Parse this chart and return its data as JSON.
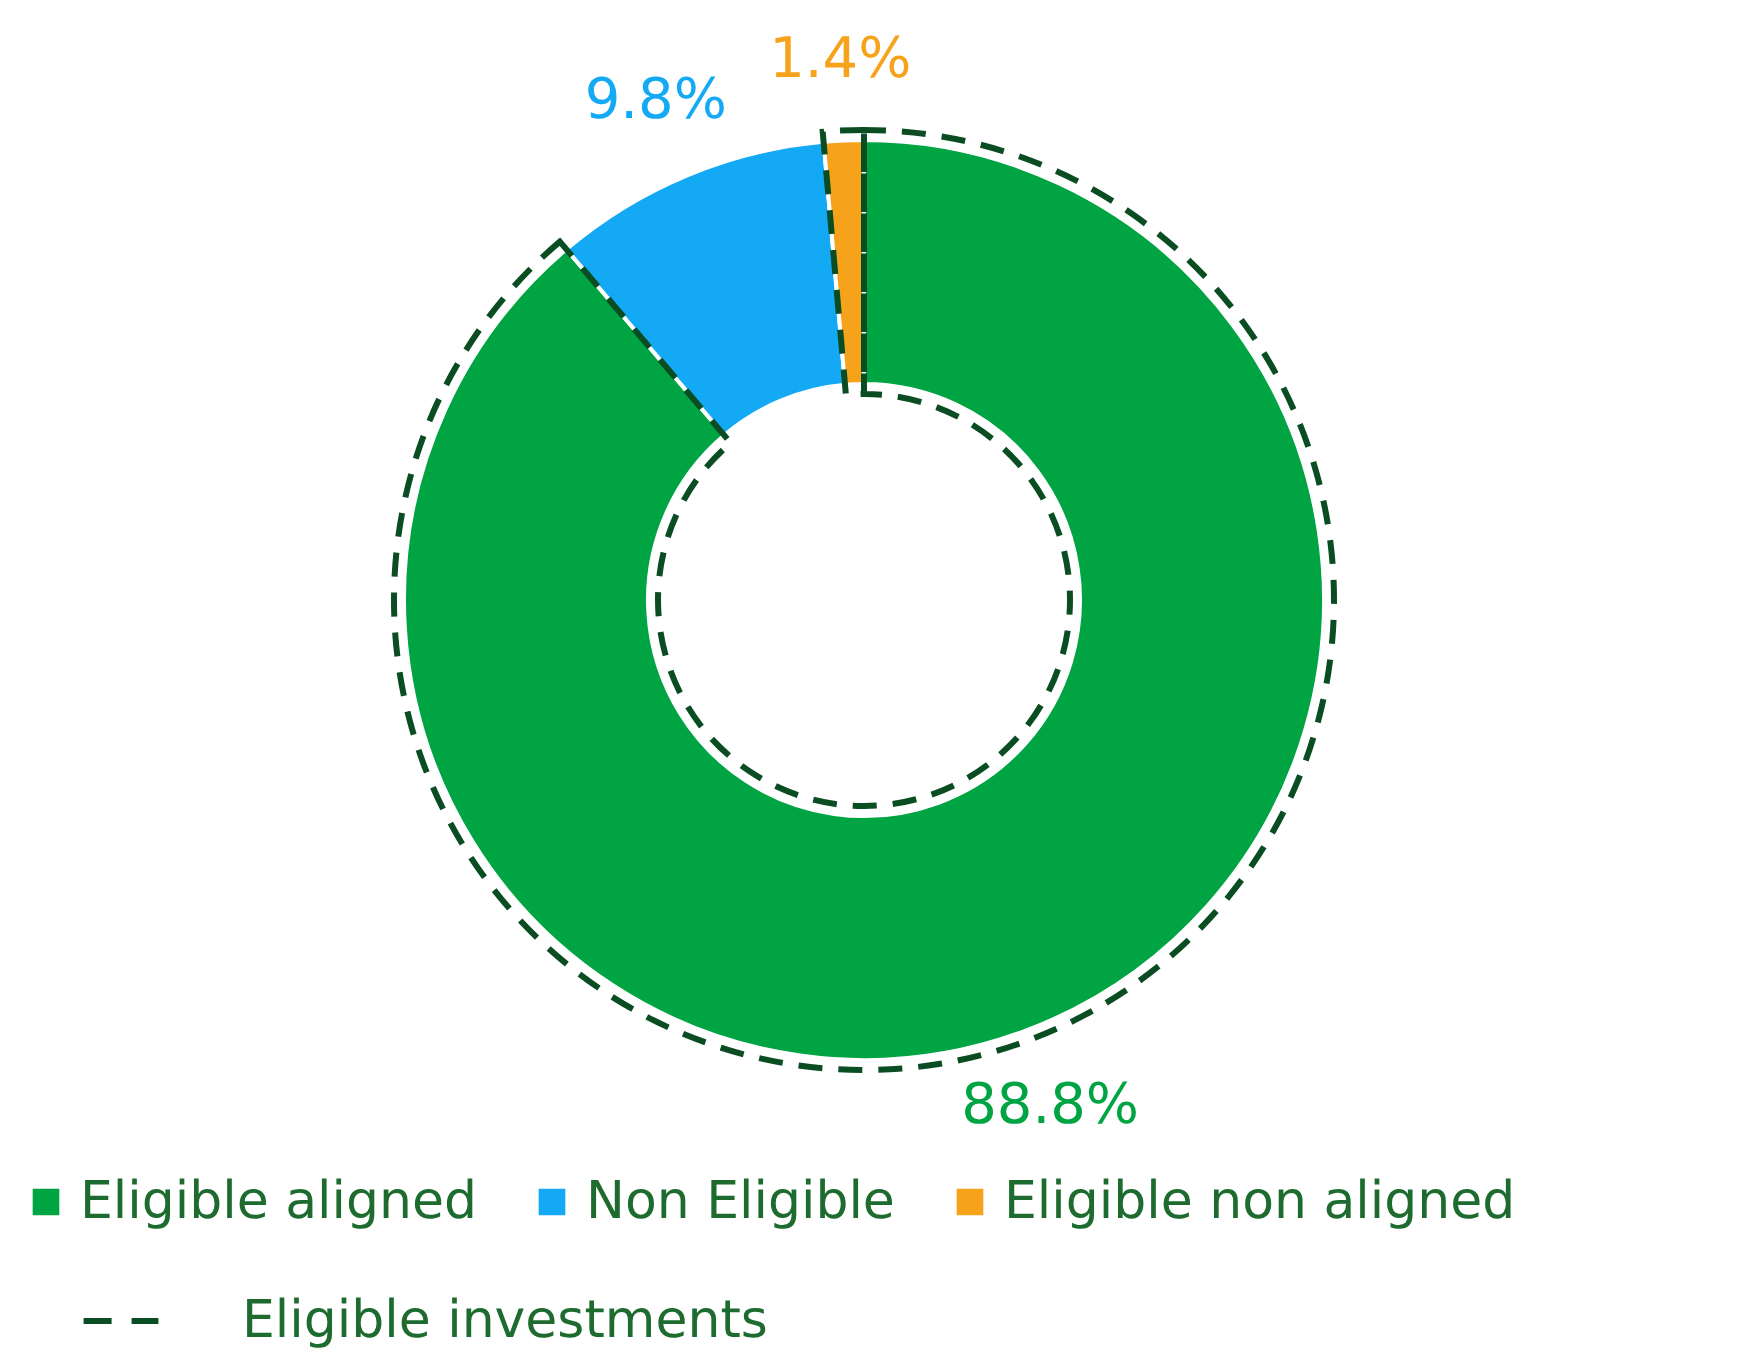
{
  "chart_data": {
    "type": "donut",
    "categories": [
      "Eligible aligned",
      "Non Eligible",
      "Eligible non aligned"
    ],
    "values": [
      88.8,
      9.8,
      1.4
    ],
    "colors": [
      "#00a443",
      "#14a9f5",
      "#f7a21b"
    ],
    "value_labels": [
      "88.8%",
      "9.8%",
      "1.4%"
    ],
    "annotations": [
      "Eligible investments"
    ],
    "legend": "bottom"
  }
}
